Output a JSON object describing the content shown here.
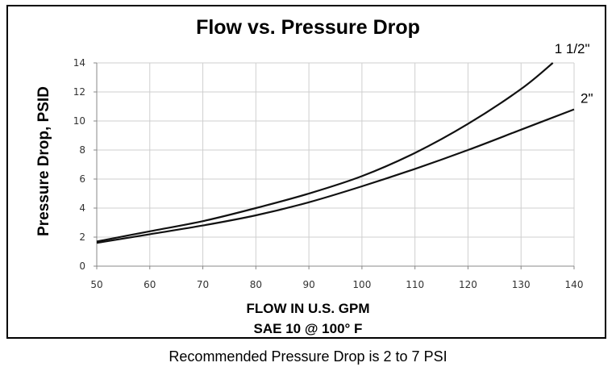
{
  "chart_data": {
    "type": "line",
    "title": "Flow vs. Pressure Drop",
    "xlabel": "FLOW  IN U.S. GPM",
    "xlabel2": "SAE 10 @ 100° F",
    "ylabel": "Pressure Drop, PSID",
    "caption": "Recommended Pressure Drop is 2 to 7 PSI",
    "xlim": [
      50,
      140
    ],
    "ylim": [
      0,
      14
    ],
    "xticks": [
      "50",
      "60",
      "70",
      "80",
      "90",
      "100",
      "110",
      "120",
      "130",
      "140"
    ],
    "yticks": [
      "0",
      "2",
      "4",
      "6",
      "8",
      "10",
      "12",
      "14"
    ],
    "grid": true,
    "series": [
      {
        "name": "1 1/2\"",
        "x": [
          50,
          60,
          70,
          80,
          90,
          100,
          110,
          120,
          130,
          136
        ],
        "y": [
          1.7,
          2.4,
          3.1,
          4.0,
          5.0,
          6.2,
          7.8,
          9.8,
          12.2,
          14.0
        ]
      },
      {
        "name": "2\"",
        "x": [
          50,
          60,
          70,
          80,
          90,
          100,
          110,
          120,
          130,
          140
        ],
        "y": [
          1.6,
          2.2,
          2.8,
          3.5,
          4.4,
          5.5,
          6.7,
          8.0,
          9.4,
          10.8
        ]
      }
    ]
  }
}
